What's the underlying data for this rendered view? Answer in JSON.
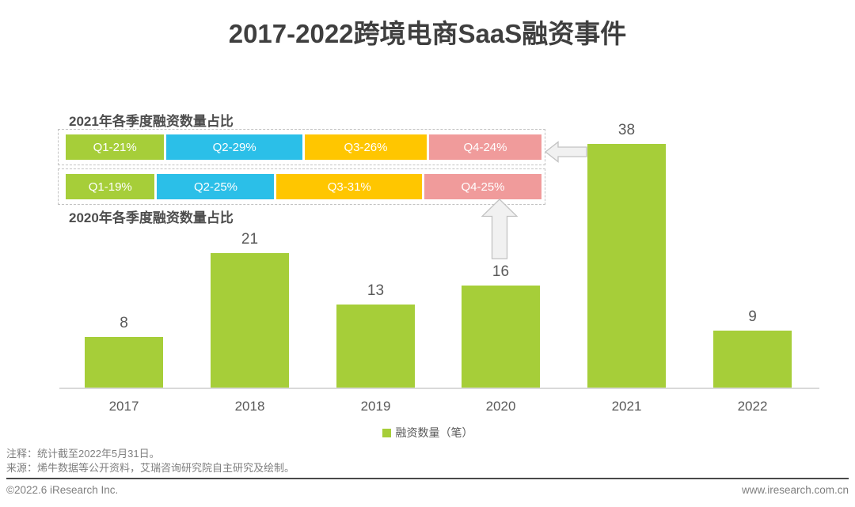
{
  "chart_data": {
    "type": "bar",
    "title": "2017-2022跨境电商SaaS融资事件",
    "categories": [
      "2017",
      "2018",
      "2019",
      "2020",
      "2021",
      "2022"
    ],
    "values": [
      8,
      21,
      13,
      16,
      38,
      9
    ],
    "xlabel": "",
    "ylabel": "融资数量（笔）",
    "ylim": [
      0,
      40
    ],
    "grid": false,
    "legend_position": "bottom",
    "legend_entries": [
      "融资数量（笔）"
    ],
    "bar_color": "#a6ce39",
    "label_color": "#595959",
    "breakdowns": [
      {
        "year": "2021",
        "title": "2021年各季度融资数量占比",
        "segments": [
          {
            "label": "Q1-21%",
            "pct": 21,
            "color": "#a6ce39"
          },
          {
            "label": "Q2-29%",
            "pct": 29,
            "color": "#2bbfe8"
          },
          {
            "label": "Q3-26%",
            "pct": 26,
            "color": "#ffc600"
          },
          {
            "label": "Q4-24%",
            "pct": 24,
            "color": "#f09b9b"
          }
        ]
      },
      {
        "year": "2020",
        "title": "2020年各季度融资数量占比",
        "segments": [
          {
            "label": "Q1-19%",
            "pct": 19,
            "color": "#a6ce39"
          },
          {
            "label": "Q2-25%",
            "pct": 25,
            "color": "#2bbfe8"
          },
          {
            "label": "Q3-31%",
            "pct": 31,
            "color": "#ffc600"
          },
          {
            "label": "Q4-25%",
            "pct": 25,
            "color": "#f09b9b"
          }
        ]
      }
    ]
  },
  "legend": {
    "label": "融资数量（笔）",
    "color": "#a6ce39"
  },
  "notes": {
    "line1": "注释：统计截至2022年5月31日。",
    "line2": "来源：烯牛数据等公开资料，艾瑞咨询研究院自主研究及绘制。"
  },
  "footer": {
    "left": "©2022.6 iResearch Inc.",
    "right": "www.iresearch.com.cn"
  }
}
